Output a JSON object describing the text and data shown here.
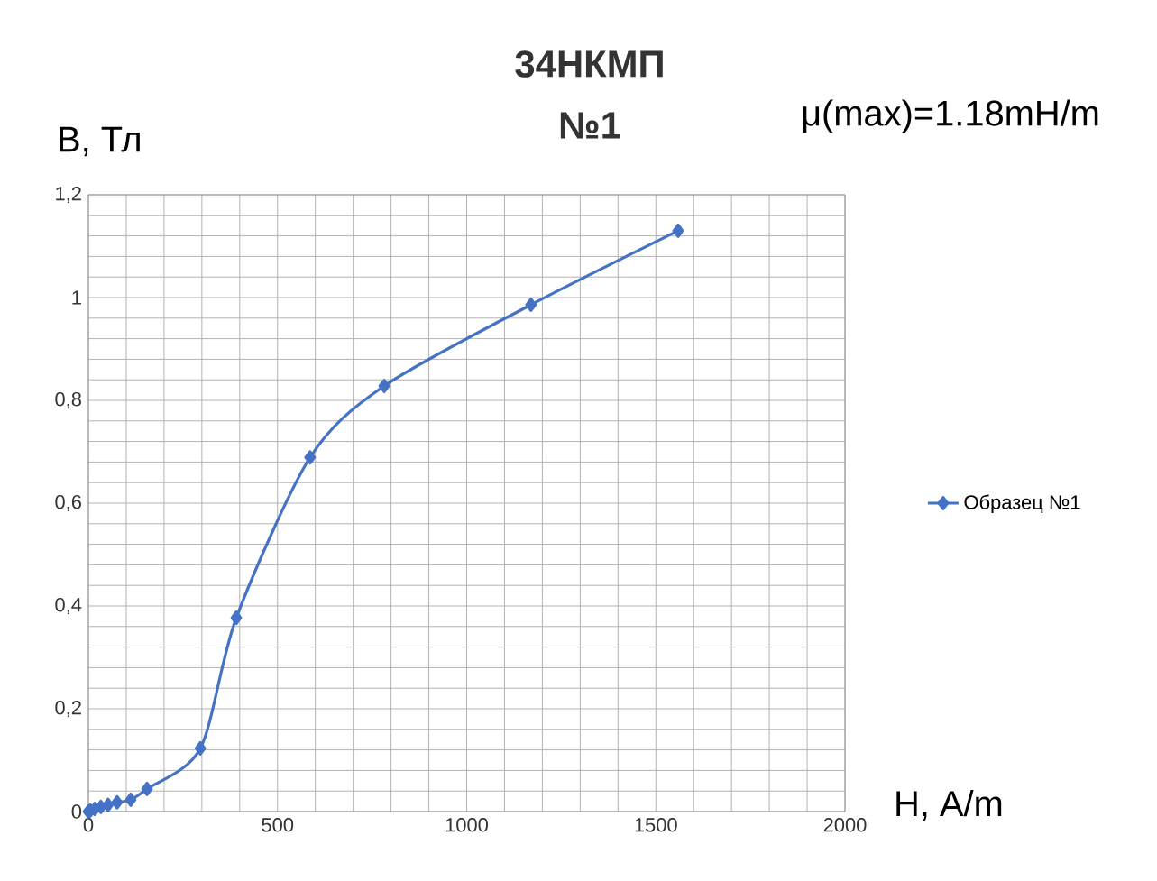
{
  "chart_data": {
    "type": "line",
    "title": "34НКМП",
    "subtitle": "№1",
    "xlabel": "H, A/m",
    "ylabel": "B, Тл",
    "annotations": [
      "μ(max)=1.18mH/m"
    ],
    "x": [
      0,
      5,
      17,
      33,
      52,
      76,
      112,
      155,
      296,
      391,
      586,
      782,
      1170,
      1559
    ],
    "series": [
      {
        "name": "Образец №1",
        "color": "#4472c4",
        "values": [
          0,
          0.002,
          0.005,
          0.009,
          0.013,
          0.018,
          0.023,
          0.044,
          0.123,
          0.377,
          0.689,
          0.828,
          0.986,
          1.13
        ]
      }
    ],
    "xlim": [
      0,
      2000
    ],
    "ylim": [
      0,
      1.2
    ],
    "xticks": [
      0,
      {
        "value": 100,
        "label": null
      },
      {
        "value": 200,
        "label": null
      },
      {
        "value": 300,
        "label": null
      },
      {
        "value": 400,
        "label": null
      },
      500,
      {
        "value": 600,
        "label": null
      },
      {
        "value": 700,
        "label": null
      },
      {
        "value": 800,
        "label": null
      },
      {
        "value": 900,
        "label": null
      },
      1000,
      {
        "value": 1100,
        "label": null
      },
      {
        "value": 1200,
        "label": null
      },
      {
        "value": 1300,
        "label": null
      },
      {
        "value": 1400,
        "label": null
      },
      1500,
      {
        "value": 1600,
        "label": null
      },
      {
        "value": 1700,
        "label": null
      },
      {
        "value": 1800,
        "label": null
      },
      {
        "value": 1900,
        "label": null
      },
      2000
    ],
    "yticks": [
      0,
      {
        "value": 0.04,
        "label": null
      },
      {
        "value": 0.08,
        "label": null
      },
      {
        "value": 0.12,
        "label": null
      },
      {
        "value": 0.16,
        "label": null
      },
      {
        "value": 0.2,
        "label": "0,2"
      },
      {
        "value": 0.24,
        "label": null
      },
      {
        "value": 0.28,
        "label": null
      },
      {
        "value": 0.32,
        "label": null
      },
      {
        "value": 0.36,
        "label": null
      },
      {
        "value": 0.4,
        "label": "0,4"
      },
      {
        "value": 0.44,
        "label": null
      },
      {
        "value": 0.48,
        "label": null
      },
      {
        "value": 0.52,
        "label": null
      },
      {
        "value": 0.56,
        "label": null
      },
      {
        "value": 0.6,
        "label": "0,6"
      },
      {
        "value": 0.64,
        "label": null
      },
      {
        "value": 0.68,
        "label": null
      },
      {
        "value": 0.72,
        "label": null
      },
      {
        "value": 0.76,
        "label": null
      },
      {
        "value": 0.8,
        "label": "0,8"
      },
      {
        "value": 0.84,
        "label": null
      },
      {
        "value": 0.88,
        "label": null
      },
      {
        "value": 0.92,
        "label": null
      },
      {
        "value": 0.96,
        "label": null
      },
      {
        "value": 1,
        "label": "1"
      },
      {
        "value": 1.04,
        "label": null
      },
      {
        "value": 1.08,
        "label": null
      },
      {
        "value": 1.12,
        "label": null
      },
      {
        "value": 1.16,
        "label": null
      },
      {
        "value": 1.2,
        "label": "1,2"
      }
    ],
    "grid": true,
    "legend": "right",
    "marker": "diamond",
    "line_style": "solid"
  }
}
